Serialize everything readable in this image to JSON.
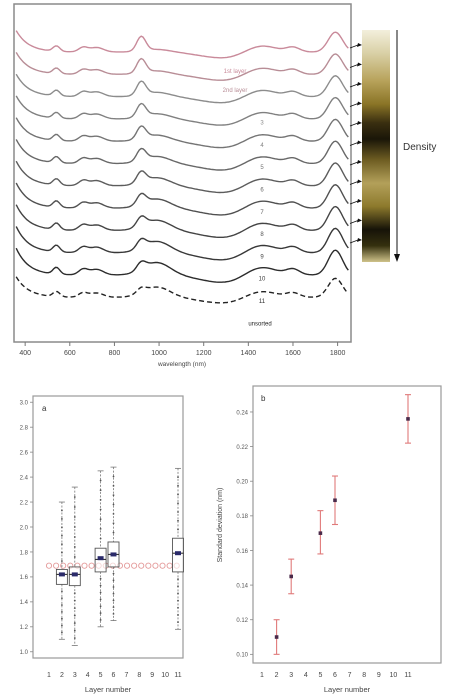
{
  "chart_data": [
    {
      "type": "line",
      "xlabel": "wavelength (nm)",
      "xlim": [
        350,
        1860
      ],
      "x_ticks": [
        "400",
        "600",
        "800",
        "1000",
        "1200",
        "1400",
        "1600",
        "1800"
      ],
      "side_label": "Density",
      "series": [
        {
          "name": "1st layer",
          "color": "#c98a9a",
          "dashed": false
        },
        {
          "name": "2nd layer",
          "color": "#b88d96",
          "dashed": false
        },
        {
          "name": "3",
          "color": "#8c8c8c",
          "dashed": false
        },
        {
          "name": "4",
          "color": "#808080",
          "dashed": false
        },
        {
          "name": "5",
          "color": "#747474",
          "dashed": false
        },
        {
          "name": "6",
          "color": "#686868",
          "dashed": false
        },
        {
          "name": "7",
          "color": "#5c5c5c",
          "dashed": false
        },
        {
          "name": "8",
          "color": "#505050",
          "dashed": false
        },
        {
          "name": "9",
          "color": "#444444",
          "dashed": false
        },
        {
          "name": "10",
          "color": "#383838",
          "dashed": false
        },
        {
          "name": "11",
          "color": "#2c2c2c",
          "dashed": false
        },
        {
          "name": "unsorted",
          "color": "#222222",
          "dashed": true
        }
      ]
    },
    {
      "type": "box",
      "panel_label": "a",
      "xlabel": "Layer number",
      "ylabel": "",
      "ylim": [
        0.95,
        3.05
      ],
      "y_ticks": [
        "1.0",
        "1.2",
        "1.4",
        "1.6",
        "1.8",
        "2.0",
        "2.2",
        "2.4",
        "2.6",
        "2.8",
        "3.0"
      ],
      "x_ticks": [
        "1",
        "2",
        "3",
        "4",
        "5",
        "6",
        "7",
        "8",
        "9",
        "10",
        "11"
      ],
      "reference_line": 1.69,
      "boxes": [
        {
          "layer": 2,
          "min": 1.1,
          "q1": 1.54,
          "median": 1.62,
          "q3": 1.66,
          "max": 2.2,
          "mean": 1.62
        },
        {
          "layer": 3,
          "min": 1.05,
          "q1": 1.53,
          "median": 1.62,
          "q3": 1.68,
          "max": 2.32,
          "mean": 1.62
        },
        {
          "layer": 5,
          "min": 1.2,
          "q1": 1.64,
          "median": 1.74,
          "q3": 1.83,
          "max": 2.45,
          "mean": 1.75
        },
        {
          "layer": 6,
          "min": 1.25,
          "q1": 1.68,
          "median": 1.78,
          "q3": 1.88,
          "max": 2.48,
          "mean": 1.78
        },
        {
          "layer": 11,
          "min": 1.18,
          "q1": 1.64,
          "median": 1.79,
          "q3": 1.91,
          "max": 2.47,
          "mean": 1.79
        }
      ]
    },
    {
      "type": "errorbar",
      "panel_label": "b",
      "xlabel": "Layer number",
      "ylabel": "Standard deviation (nm)",
      "ylim": [
        0.095,
        0.255
      ],
      "y_ticks": [
        "0.10",
        "0.12",
        "0.14",
        "0.16",
        "0.18",
        "0.20",
        "0.22",
        "0.24"
      ],
      "x_ticks": [
        "1",
        "2",
        "3",
        "4",
        "5",
        "6",
        "7",
        "8",
        "9",
        "10",
        "11"
      ],
      "points": [
        {
          "layer": 2,
          "value": 0.11,
          "low": 0.1,
          "high": 0.12
        },
        {
          "layer": 3,
          "value": 0.145,
          "low": 0.135,
          "high": 0.155
        },
        {
          "layer": 5,
          "value": 0.17,
          "low": 0.158,
          "high": 0.183
        },
        {
          "layer": 6,
          "value": 0.189,
          "low": 0.175,
          "high": 0.203
        },
        {
          "layer": 11,
          "value": 0.236,
          "low": 0.222,
          "high": 0.25
        }
      ]
    }
  ]
}
